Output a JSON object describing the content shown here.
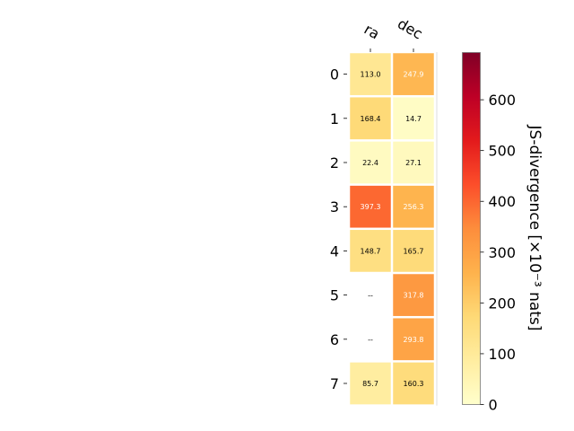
{
  "chart_data": {
    "type": "heatmap",
    "columns": [
      "ra",
      "dec"
    ],
    "rows": [
      "0",
      "1",
      "2",
      "3",
      "4",
      "5",
      "6",
      "7"
    ],
    "values": [
      [
        113.0,
        247.9
      ],
      [
        168.4,
        14.7
      ],
      [
        22.4,
        27.1
      ],
      [
        397.3,
        256.3
      ],
      [
        148.7,
        165.7
      ],
      [
        null,
        317.8
      ],
      [
        null,
        293.8
      ],
      [
        85.7,
        160.3
      ]
    ],
    "cell_labels": [
      [
        "113.0",
        "247.9"
      ],
      [
        "168.4",
        "14.7"
      ],
      [
        "22.4",
        "27.1"
      ],
      [
        "397.3",
        "256.3"
      ],
      [
        "148.7",
        "165.7"
      ],
      [
        "--",
        "317.8"
      ],
      [
        "--",
        "293.8"
      ],
      [
        "85.7",
        "160.3"
      ]
    ],
    "colormap": "YlOrRd",
    "colorbar": {
      "label": "JS-divergence [×10⁻³ nats]",
      "range": [
        0,
        693
      ],
      "ticks": [
        0,
        100,
        200,
        300,
        400,
        500,
        600
      ],
      "tick_labels": [
        "0",
        "100",
        "200",
        "300",
        "400",
        "500",
        "600"
      ]
    }
  }
}
